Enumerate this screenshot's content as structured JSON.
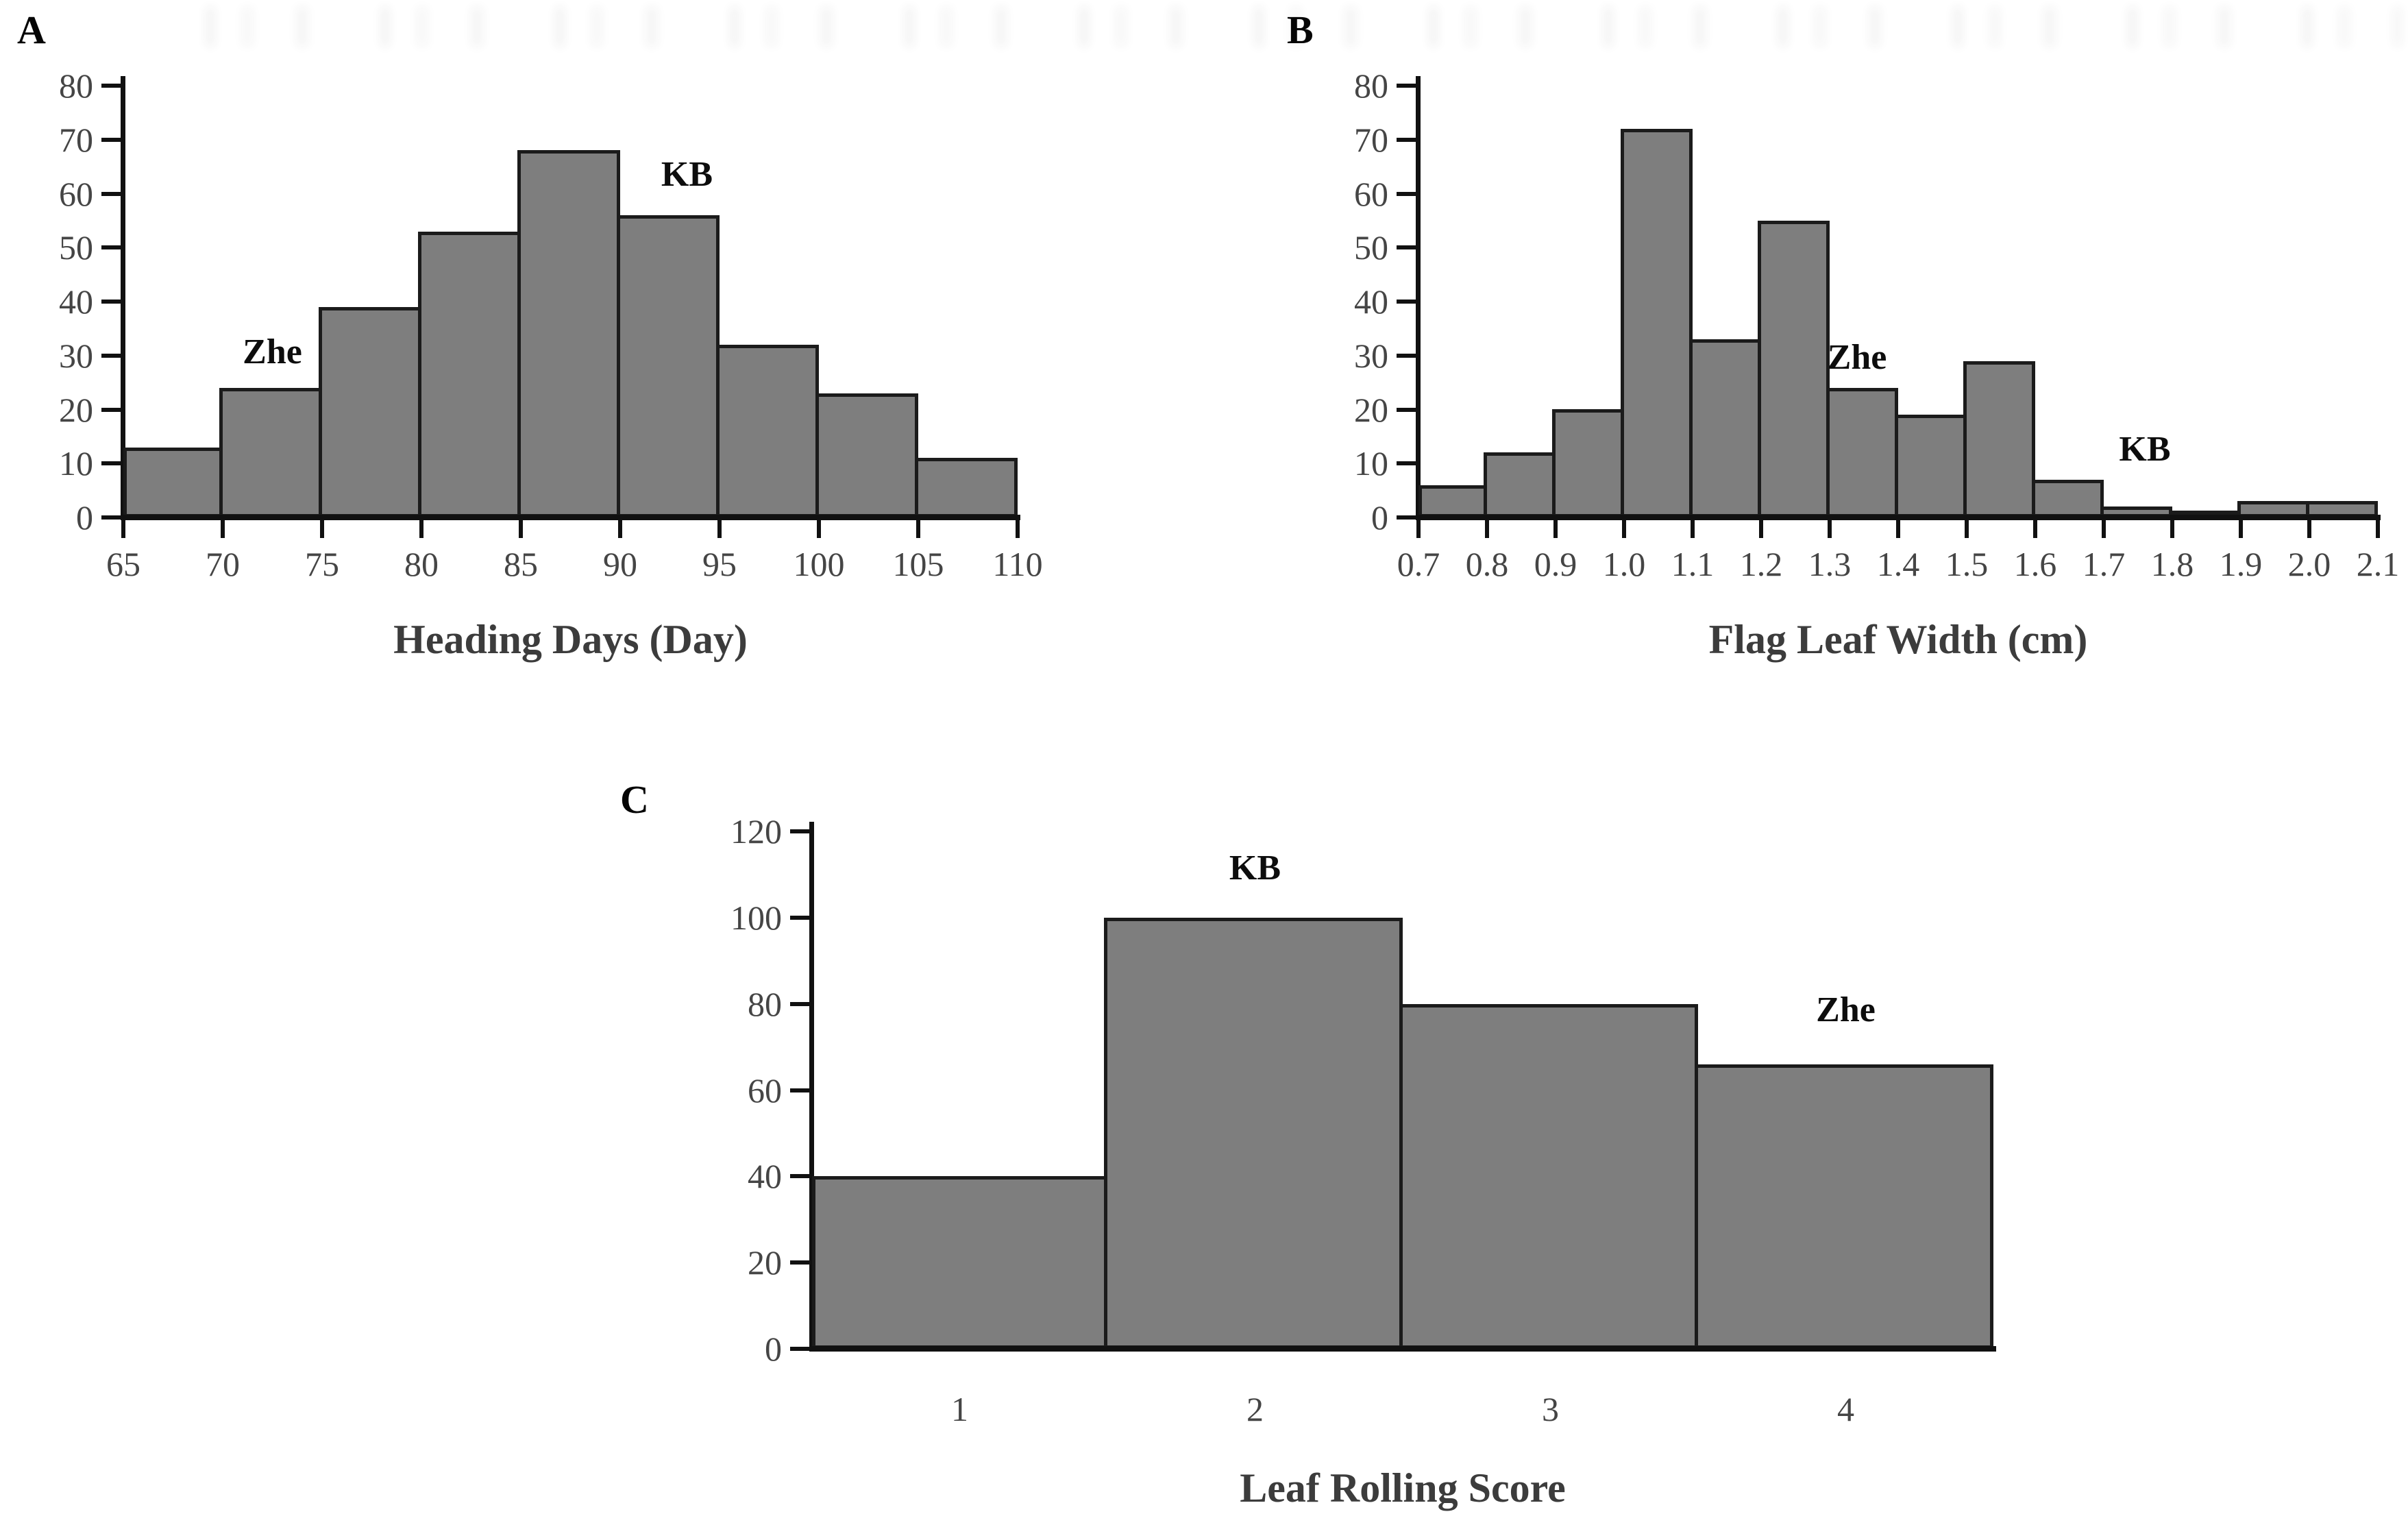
{
  "chart_data": [
    {
      "type": "bar",
      "subtype": "histogram",
      "panel_label": "A",
      "xlabel": "Heading Days (Day)",
      "ylabel": "",
      "ylim": [
        0,
        80
      ],
      "yticks": [
        0,
        10,
        20,
        30,
        40,
        50,
        60,
        70,
        80
      ],
      "bin_edges": [
        65,
        70,
        75,
        80,
        85,
        90,
        95,
        100,
        105,
        110
      ],
      "xtick_labels": [
        "65",
        "70",
        "75",
        "80",
        "85",
        "90",
        "95",
        "100",
        "105",
        "110"
      ],
      "xtick_position": "edges",
      "values": [
        13,
        24,
        39,
        53,
        68,
        56,
        32,
        23,
        11
      ],
      "grid": false,
      "legend": "none",
      "annotations": [
        {
          "text": "Zhe",
          "bin": 1,
          "label_y": 27,
          "dx": 0
        },
        {
          "text": "KB",
          "bin": 5,
          "label_y": 60,
          "dx": 25
        }
      ]
    },
    {
      "type": "bar",
      "subtype": "histogram",
      "panel_label": "B",
      "xlabel": "Flag Leaf Width (cm)",
      "ylabel": "",
      "ylim": [
        0,
        80
      ],
      "yticks": [
        0,
        10,
        20,
        30,
        40,
        50,
        60,
        70,
        80
      ],
      "bin_edges": [
        0.7,
        0.8,
        0.9,
        1.0,
        1.1,
        1.2,
        1.3,
        1.4,
        1.5,
        1.6,
        1.7,
        1.8,
        1.9,
        2.0,
        2.1
      ],
      "xtick_labels": [
        "0.7",
        "0.8",
        "0.9",
        "1.0",
        "1.1",
        "1.2",
        "1.3",
        "1.4",
        "1.5",
        "1.6",
        "1.7",
        "1.8",
        "1.9",
        "2.0",
        "2.1"
      ],
      "xtick_position": "edges",
      "values": [
        6,
        12,
        20,
        72,
        33,
        55,
        24,
        19,
        29,
        7,
        2,
        1,
        3,
        3
      ],
      "grid": false,
      "legend": "none",
      "annotations": [
        {
          "text": "Zhe",
          "bin": 6,
          "label_y": 26,
          "dx": -10
        },
        {
          "text": "KB",
          "bin": 10,
          "label_y": 9,
          "dx": 10
        }
      ]
    },
    {
      "type": "bar",
      "subtype": "histogram",
      "panel_label": "C",
      "xlabel": "Leaf Rolling Score",
      "ylabel": "",
      "ylim": [
        0,
        120
      ],
      "yticks": [
        0,
        20,
        40,
        60,
        80,
        100,
        120
      ],
      "categories": [
        "1",
        "2",
        "3",
        "4"
      ],
      "xtick_labels": [
        "1",
        "2",
        "3",
        "4"
      ],
      "xtick_position": "bin-centers",
      "values": [
        40,
        100,
        80,
        66
      ],
      "grid": false,
      "legend": "none",
      "annotations": [
        {
          "text": "KB",
          "bin": 1,
          "label_y": 107,
          "dx": 0
        },
        {
          "text": "Zhe",
          "bin": 3,
          "label_y": 74,
          "dx": 0
        }
      ]
    }
  ],
  "colors": {
    "background": "#ffffff",
    "bar_fill": "#7e7e7e",
    "bar_border": "#1b1b1b",
    "axis": "#111111",
    "tick_label": "#454545",
    "axis_title": "#3c3c3c",
    "annotation": "#0d0d0d"
  }
}
